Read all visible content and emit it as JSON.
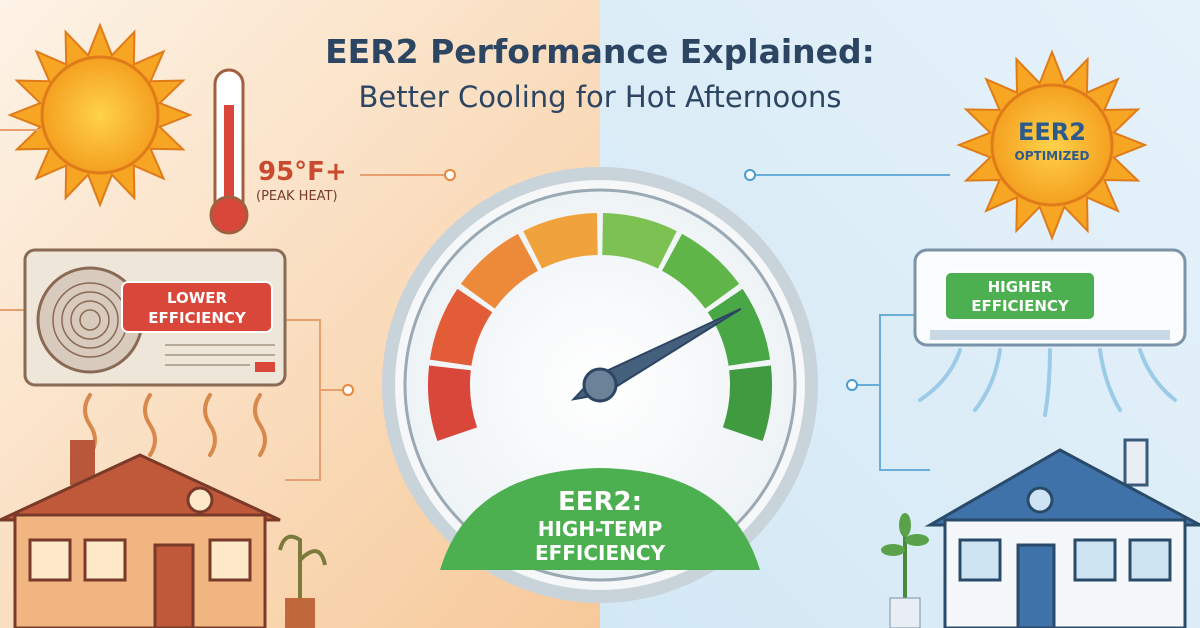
{
  "header": {
    "title": "EER2 Performance Explained:",
    "subtitle": "Better Cooling for Hot Afternoons"
  },
  "left": {
    "temperature": "95°F+",
    "temperature_note": "(PEAK HEAT)",
    "unit_badge": [
      "LOWER",
      "EFFICIENCY"
    ],
    "icons": [
      "sun-icon",
      "thermometer-icon",
      "outdoor-ac-unit-icon",
      "hot-house-icon",
      "wilted-plant-icon",
      "heat-waves-icon"
    ]
  },
  "right": {
    "sun_badge": [
      "EER2",
      "OPTIMIZED"
    ],
    "unit_badge": [
      "HIGHER",
      "EFFICIENCY"
    ],
    "icons": [
      "sun-icon",
      "wall-ac-unit-icon",
      "airflow-icon",
      "cool-house-icon",
      "plant-icon"
    ]
  },
  "gauge": {
    "label": [
      "EER2:",
      "HIGH-TEMP",
      "EFFICIENCY"
    ],
    "needle_level_percent": 78
  },
  "colors": {
    "warm_bg": "#fbe3c8",
    "cool_bg": "#dcedf7",
    "title": "#2c4563",
    "red_badge": "#d9463a",
    "green_badge": "#4caf50",
    "accent_orange": "#e8863a",
    "accent_blue": "#4a9bd1"
  }
}
